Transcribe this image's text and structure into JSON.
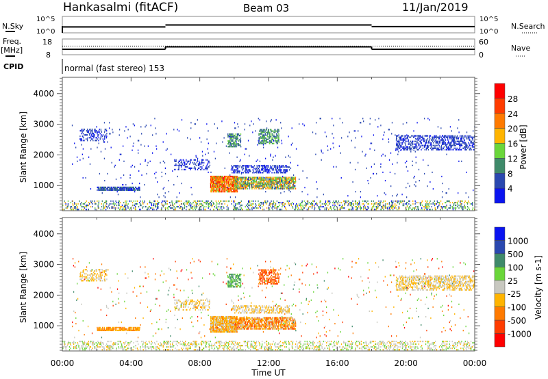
{
  "header": {
    "station": "Hankasalmi (fitACF)",
    "beam": "Beam 03",
    "date": "11/Jan/2019"
  },
  "strip": {
    "nsky_label": "N.Sky",
    "nsearch_label": "N.Search",
    "freq_label": "Freq.",
    "freq_unit": "[MHz]",
    "nave_label": "Nave",
    "cpid_label": "CPID",
    "cpid_text": "normal (fast stereo) 153",
    "left_ticks_top": [
      "10^5",
      "10^0"
    ],
    "right_ticks_top": [
      "10^5",
      "10^0"
    ],
    "left_ticks_freq": [
      "18",
      "8"
    ],
    "right_ticks_nave": [
      "60",
      "0"
    ]
  },
  "chart_data": [
    {
      "type": "heatmap",
      "title": "Power",
      "ylabel": "Slant Range [km]",
      "xlabel": "Time UT",
      "xlim_hours": [
        0,
        24
      ],
      "ylim": [
        180,
        4530
      ],
      "yticks": [
        "1000",
        "2000",
        "3000",
        "4000"
      ],
      "xticks": [
        "00:00",
        "04:00",
        "08:00",
        "12:00",
        "16:00",
        "20:00",
        "00:00"
      ],
      "colorbar": {
        "label": "Power [dB]",
        "ticks": [
          "4",
          "8",
          "12",
          "16",
          "20",
          "24",
          "28"
        ],
        "colors": [
          "#0a14f0",
          "#2a48b0",
          "#3f8a6a",
          "#6ad63a",
          "#ffb400",
          "#ff7a00",
          "#ff3c00",
          "#ff0000"
        ]
      },
      "regions": [
        {
          "t": [
            2.0,
            4.5
          ],
          "r": [
            830,
            960
          ],
          "v": [
            2,
            10
          ],
          "density": 0.8
        },
        {
          "t": [
            1.0,
            2.6
          ],
          "r": [
            2450,
            2850
          ],
          "v": [
            2,
            7
          ],
          "density": 0.35
        },
        {
          "t": [
            6.5,
            8.6
          ],
          "r": [
            1500,
            1850
          ],
          "v": [
            2,
            7
          ],
          "density": 0.3
        },
        {
          "t": [
            8.6,
            10.2
          ],
          "r": [
            780,
            1300
          ],
          "v": [
            14,
            30
          ],
          "density": 0.9
        },
        {
          "t": [
            10.0,
            13.6
          ],
          "r": [
            880,
            1300
          ],
          "v": [
            6,
            24
          ],
          "density": 0.75
        },
        {
          "t": [
            9.6,
            10.4
          ],
          "r": [
            2250,
            2700
          ],
          "v": [
            6,
            14
          ],
          "density": 0.6
        },
        {
          "t": [
            11.4,
            12.6
          ],
          "r": [
            2350,
            2850
          ],
          "v": [
            6,
            14
          ],
          "density": 0.55
        },
        {
          "t": [
            9.8,
            13.2
          ],
          "r": [
            1400,
            1650
          ],
          "v": [
            2,
            6
          ],
          "density": 0.4
        },
        {
          "t": [
            19.4,
            24.0
          ],
          "r": [
            2150,
            2650
          ],
          "v": [
            2,
            8
          ],
          "density": 0.45
        },
        {
          "t": [
            0.0,
            24.0
          ],
          "r": [
            200,
            520
          ],
          "v": [
            2,
            20
          ],
          "density": 0.28
        },
        {
          "t": [
            0.5,
            24.0
          ],
          "r": [
            600,
            3200
          ],
          "v": [
            2,
            8
          ],
          "density": 0.015
        }
      ]
    },
    {
      "type": "heatmap",
      "title": "Velocity",
      "ylabel": "Slant Range [km]",
      "xlabel": "Time UT",
      "xlim_hours": [
        0,
        24
      ],
      "ylim": [
        180,
        4530
      ],
      "yticks": [
        "1000",
        "2000",
        "3000",
        "4000"
      ],
      "xticks": [
        "00:00",
        "04:00",
        "08:00",
        "12:00",
        "16:00",
        "20:00",
        "00:00"
      ],
      "colorbar": {
        "label": "Velocity [m s-1]",
        "ticks": [
          "1000",
          "500",
          "100",
          "25",
          "-25",
          "-100",
          "-500",
          "-1000"
        ],
        "colors": [
          "#0a14f0",
          "#2a48b0",
          "#3f8a6a",
          "#6ad63a",
          "#c8c8c0",
          "#ffb400",
          "#ff7a00",
          "#ff3c00",
          "#ff0000"
        ]
      },
      "regions": [
        {
          "t": [
            2.0,
            4.5
          ],
          "r": [
            830,
            960
          ],
          "v": [
            5,
            6
          ],
          "density": 0.8
        },
        {
          "t": [
            1.0,
            2.6
          ],
          "r": [
            2450,
            2850
          ],
          "v": [
            4,
            5
          ],
          "density": 0.35
        },
        {
          "t": [
            6.5,
            8.6
          ],
          "r": [
            1500,
            1850
          ],
          "v": [
            4,
            5
          ],
          "density": 0.3
        },
        {
          "t": [
            8.6,
            10.2
          ],
          "r": [
            780,
            1300
          ],
          "v": [
            4,
            6
          ],
          "density": 0.9
        },
        {
          "t": [
            10.0,
            13.6
          ],
          "r": [
            880,
            1300
          ],
          "v": [
            4,
            7
          ],
          "density": 0.75
        },
        {
          "t": [
            9.6,
            10.4
          ],
          "r": [
            2250,
            2700
          ],
          "v": [
            2,
            3
          ],
          "density": 0.6
        },
        {
          "t": [
            11.4,
            12.6
          ],
          "r": [
            2350,
            2850
          ],
          "v": [
            6,
            7
          ],
          "density": 0.55
        },
        {
          "t": [
            9.8,
            13.2
          ],
          "r": [
            1400,
            1650
          ],
          "v": [
            4,
            5
          ],
          "density": 0.4
        },
        {
          "t": [
            19.4,
            24.0
          ],
          "r": [
            2150,
            2650
          ],
          "v": [
            4,
            5
          ],
          "density": 0.45
        },
        {
          "t": [
            0.0,
            24.0
          ],
          "r": [
            200,
            520
          ],
          "v": [
            3,
            5
          ],
          "density": 0.28
        },
        {
          "t": [
            0.5,
            24.0
          ],
          "r": [
            600,
            3200
          ],
          "v": [
            2,
            8
          ],
          "density": 0.015
        }
      ]
    }
  ],
  "strip_data": {
    "freq_mhz": [
      {
        "t": [
          0,
          6
        ],
        "v": 11.5
      },
      {
        "t": [
          6,
          18
        ],
        "v": 13
      },
      {
        "t": [
          18,
          24
        ],
        "v": 11.5
      }
    ],
    "nave": 33,
    "nsky_log": [
      {
        "t": [
          0,
          6
        ],
        "v": 1.8
      },
      {
        "t": [
          6,
          18
        ],
        "v": 2.4
      },
      {
        "t": [
          18,
          24
        ],
        "v": 1.9
      }
    ]
  }
}
